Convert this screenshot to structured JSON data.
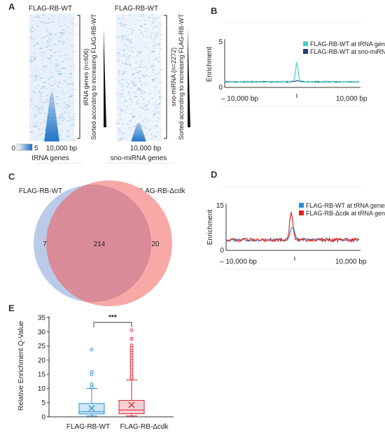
{
  "panels": {
    "A": {
      "letter": "A",
      "left_title": "FLAG-RB-WT",
      "right_title": "FLAG-RB-WT",
      "left_side_label_1": "tRNA genes (n=606)",
      "left_side_label_2": "Sorted according to increasing FLAG-RB-WT",
      "right_side_label_1": "sno-miRNA (n=2272)",
      "right_side_label_2": "Sorted according to increasing FLAG-RB-WT",
      "scale_min": "0",
      "scale_max": "5",
      "left_bp": "10,000 bp",
      "right_bp": "10,000 bp",
      "left_caption": "tRNA genes",
      "right_caption": "sno-miRNA genes",
      "heat_color": "#1a6fc4"
    },
    "B": {
      "letter": "B",
      "ylabel": "Enrichment",
      "ymax_label": "5",
      "ymin_label": "0",
      "x_left": "– 10,000 bp",
      "x_right": "10,000 bp",
      "legend": [
        {
          "label": "FLAG-RB-WT at tRNA genes",
          "color": "#45d1c5"
        },
        {
          "label": "FLAG-RB-WT at sno-miRNA",
          "color": "#1f3f7a"
        }
      ]
    },
    "C": {
      "letter": "C",
      "left_label": "FLAG-RB-WT",
      "right_label": "FLAG-RB-Δcdk",
      "left_only": "7",
      "overlap": "214",
      "right_only": "20",
      "left_color": "#b9cbe8",
      "right_color": "#f7a9a8",
      "overlap_color": "#d98b97"
    },
    "D": {
      "letter": "D",
      "ylabel": "Enrichment",
      "ymax_label": "15",
      "ymin_label": "0",
      "x_left": "– 10,000 bp",
      "x_right": "10,000 bp",
      "legend": [
        {
          "label": "FLAG-RB-WT at tRNA genes",
          "color": "#2a8fd0"
        },
        {
          "label": "FLAG-RB-Δcdk at tRNA genes",
          "color": "#e2231a"
        }
      ]
    },
    "E": {
      "letter": "E",
      "significance": "***"
    }
  },
  "chart_data": {
    "type": "box",
    "ylabel": "Relative Enrichment Q-Value",
    "ylim": [
      0,
      35
    ],
    "yticks": [
      0,
      5,
      10,
      15,
      20,
      25,
      30,
      35
    ],
    "categories": [
      "FLAG-RB-WT",
      "FLAG-RB-Δcdk"
    ],
    "series": [
      {
        "name": "FLAG-RB-WT",
        "color": "#2a8fd0",
        "fill": "#cfe6f6",
        "min": 0.3,
        "q1": 1.0,
        "median": 1.8,
        "q3": 4.7,
        "max": 10.0,
        "mean": 3.0,
        "outliers": [
          10.5,
          11.5,
          15.0,
          15.8,
          23.7
        ]
      },
      {
        "name": "FLAG-RB-Δcdk",
        "color": "#d9262f",
        "fill": "#f6d0d2",
        "min": 0.3,
        "q1": 1.1,
        "median": 2.4,
        "q3": 5.8,
        "max": 13.0,
        "mean": 4.2,
        "outliers": [
          13.6,
          14.2,
          15.0,
          15.8,
          16.6,
          17.4,
          18.2,
          19.0,
          19.8,
          20.6,
          21.6,
          22.5,
          23.5,
          24.3,
          25.2,
          27.5,
          30.5
        ]
      }
    ]
  }
}
